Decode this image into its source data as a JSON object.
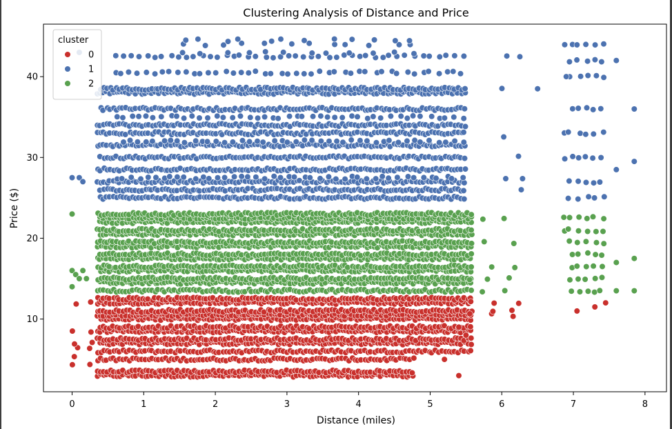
{
  "chart_data": {
    "type": "scatter",
    "title": "Clustering Analysis of Distance and Price",
    "xlabel": "Distance (miles)",
    "ylabel": "Price ($)",
    "xlim": [
      -0.4,
      8.3
    ],
    "ylim": [
      1.0,
      46.5
    ],
    "xticks": [
      0,
      1,
      2,
      3,
      4,
      5,
      6,
      7,
      8
    ],
    "yticks": [
      10,
      20,
      30,
      40
    ],
    "grid": false,
    "legend": {
      "title": "cluster",
      "placement": "top-left",
      "entries": [
        "0",
        "1",
        "2"
      ]
    },
    "colors": {
      "0": "#c9302c",
      "1": "#4c72b0",
      "2": "#59a14f"
    },
    "series": [
      {
        "name": "0",
        "color": "#c9302c",
        "price_range": [
          2.5,
          13.0
        ],
        "distance_range": [
          0.0,
          6.3
        ],
        "bands": [
          {
            "price_levels": [
              3.0,
              3.5,
              5.0
            ],
            "distance_range": [
              0.35,
              4.8
            ],
            "density": "high"
          },
          {
            "price_levels": [
              6.0,
              7.0,
              7.5,
              8.5,
              9.0,
              10.0,
              10.5,
              11.0,
              12.0,
              12.5
            ],
            "distance_range": [
              0.35,
              5.6
            ],
            "density": "high"
          },
          {
            "price_levels": [
              4.5,
              5.5,
              6.5,
              7.0,
              8.5,
              9.5,
              12.0
            ],
            "distance_range": [
              0.0,
              0.3
            ],
            "density": "low"
          },
          {
            "price_levels": [
              10.5,
              11.0,
              12.0
            ],
            "distance_range": [
              5.55,
              6.3
            ],
            "density": "low"
          }
        ],
        "extra_points": [
          [
            5.4,
            3.0
          ],
          [
            5.2,
            5.0
          ],
          [
            5.4,
            9.0
          ],
          [
            5.5,
            8.0
          ],
          [
            7.05,
            11.0
          ],
          [
            7.3,
            11.5
          ],
          [
            7.45,
            12.0
          ]
        ]
      },
      {
        "name": "1",
        "color": "#4c72b0",
        "price_range": [
          24.5,
          44.5
        ],
        "distance_range": [
          0.0,
          7.85
        ],
        "bands": [
          {
            "price_levels": [
              25.0,
              26.0,
              27.0,
              28.5,
              30.0,
              31.5,
              33.0,
              34.0,
              36.0,
              38.0,
              38.5
            ],
            "distance_range": [
              0.35,
              5.5
            ],
            "density": "high"
          },
          {
            "price_levels": [
              27.5,
              32.0,
              35.0,
              40.5,
              42.5
            ],
            "distance_range": [
              0.6,
              5.5
            ],
            "density": "medium"
          },
          {
            "price_levels": [
              43.0,
              44.0,
              44.5
            ],
            "distance_range": [
              1.5,
              4.8
            ],
            "density": "low"
          },
          {
            "price_levels": [
              26.0,
              27.5,
              30.0,
              32.5,
              38.5,
              42.5
            ],
            "distance_range": [
              6.0,
              6.3
            ],
            "density": "low"
          },
          {
            "price_levels": [
              25.0,
              27.0,
              30.0,
              33.0,
              36.0,
              40.0,
              42.0,
              44.0
            ],
            "distance_range": [
              6.85,
              7.5
            ],
            "density": "medium"
          }
        ],
        "extra_points": [
          [
            0.0,
            27.5
          ],
          [
            0.1,
            27.5
          ],
          [
            0.15,
            27.0
          ],
          [
            0.1,
            43.0
          ],
          [
            7.6,
            42.0
          ],
          [
            7.6,
            28.5
          ],
          [
            7.85,
            36.0
          ],
          [
            7.85,
            29.5
          ],
          [
            6.5,
            38.5
          ],
          [
            6.9,
            40.0
          ]
        ]
      },
      {
        "name": "2",
        "color": "#59a14f",
        "price_range": [
          13.5,
          23.5
        ],
        "distance_range": [
          0.0,
          7.85
        ],
        "bands": [
          {
            "price_levels": [
              13.5,
              14.5,
              15.0,
              16.0,
              16.5,
              17.5,
              18.0,
              19.0,
              19.5,
              20.5,
              21.0,
              22.0,
              22.5,
              23.0
            ],
            "distance_range": [
              0.35,
              5.6
            ],
            "density": "high"
          },
          {
            "price_levels": [
              13.5,
              15.0,
              16.5,
              19.5,
              22.5
            ],
            "distance_range": [
              5.5,
              6.3
            ],
            "density": "low"
          },
          {
            "price_levels": [
              13.5,
              15.0,
              16.5,
              18.0,
              19.5,
              21.0,
              22.5
            ],
            "distance_range": [
              6.85,
              7.5
            ],
            "density": "medium"
          }
        ],
        "extra_points": [
          [
            0.0,
            23.0
          ],
          [
            0.0,
            14.0
          ],
          [
            0.0,
            16.0
          ],
          [
            0.05,
            15.5
          ],
          [
            0.1,
            15.0
          ],
          [
            0.2,
            15.0
          ],
          [
            0.15,
            16.0
          ],
          [
            7.6,
            17.0
          ],
          [
            7.6,
            13.5
          ],
          [
            7.85,
            17.5
          ],
          [
            7.85,
            13.5
          ]
        ]
      }
    ]
  }
}
